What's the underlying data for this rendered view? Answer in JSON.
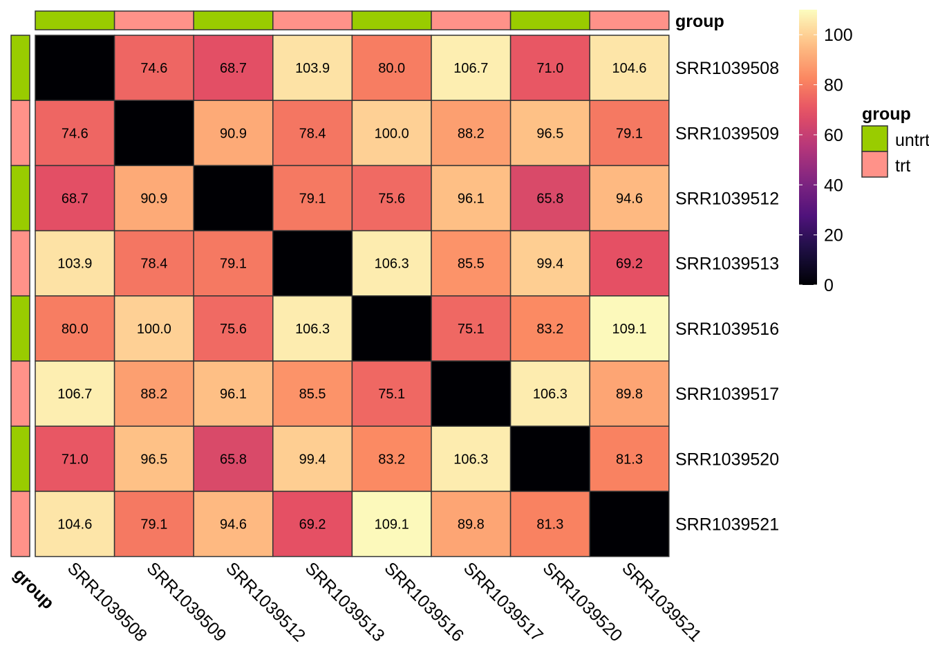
{
  "chart_data": {
    "type": "heatmap",
    "rows": [
      "SRR1039508",
      "SRR1039509",
      "SRR1039512",
      "SRR1039513",
      "SRR1039516",
      "SRR1039517",
      "SRR1039520",
      "SRR1039521"
    ],
    "columns": [
      "SRR1039508",
      "SRR1039509",
      "SRR1039512",
      "SRR1039513",
      "SRR1039516",
      "SRR1039517",
      "SRR1039520",
      "SRR1039521"
    ],
    "values": [
      [
        0,
        74.6,
        68.7,
        103.9,
        80.0,
        106.7,
        71.0,
        104.6
      ],
      [
        74.6,
        0,
        90.9,
        78.4,
        100.0,
        88.2,
        96.5,
        79.1
      ],
      [
        68.7,
        90.9,
        0,
        79.1,
        75.6,
        96.1,
        65.8,
        94.6
      ],
      [
        103.9,
        78.4,
        79.1,
        0,
        106.3,
        85.5,
        99.4,
        69.2
      ],
      [
        80.0,
        100.0,
        75.6,
        106.3,
        0,
        75.1,
        83.2,
        109.1
      ],
      [
        106.7,
        88.2,
        96.1,
        85.5,
        75.1,
        0,
        106.3,
        89.8
      ],
      [
        71.0,
        96.5,
        65.8,
        99.4,
        83.2,
        106.3,
        0,
        81.3
      ],
      [
        104.6,
        79.1,
        94.6,
        69.2,
        109.1,
        89.8,
        81.3,
        0
      ]
    ],
    "cell_labels": [
      [
        "",
        "74.6",
        "68.7",
        "103.9",
        "80.0",
        "106.7",
        "71.0",
        "104.6"
      ],
      [
        "74.6",
        "",
        "90.9",
        "78.4",
        "100.0",
        "88.2",
        "96.5",
        "79.1"
      ],
      [
        "68.7",
        "90.9",
        "",
        "79.1",
        "75.6",
        "96.1",
        "65.8",
        "94.6"
      ],
      [
        "103.9",
        "78.4",
        "79.1",
        "",
        "106.3",
        "85.5",
        "99.4",
        "69.2"
      ],
      [
        "80.0",
        "100.0",
        "75.6",
        "106.3",
        "",
        "75.1",
        "83.2",
        "109.1"
      ],
      [
        "106.7",
        "88.2",
        "96.1",
        "85.5",
        "75.1",
        "",
        "106.3",
        "89.8"
      ],
      [
        "71.0",
        "96.5",
        "65.8",
        "99.4",
        "83.2",
        "106.3",
        "",
        "81.3"
      ],
      [
        "104.6",
        "79.1",
        "94.6",
        "69.2",
        "109.1",
        "89.8",
        "81.3",
        ""
      ]
    ],
    "color_scale": "magma",
    "color_range": [
      0,
      110
    ],
    "colorbar_ticks": [
      "0",
      "20",
      "40",
      "60",
      "80",
      "100"
    ],
    "annotation": {
      "title": "group",
      "groups": [
        "untrt",
        "trt",
        "untrt",
        "trt",
        "untrt",
        "trt",
        "untrt",
        "trt"
      ],
      "categories": [
        {
          "name": "untrt",
          "color": "#99cc00"
        },
        {
          "name": "trt",
          "color": "#ff9289"
        }
      ]
    },
    "legend_placement": "right"
  }
}
